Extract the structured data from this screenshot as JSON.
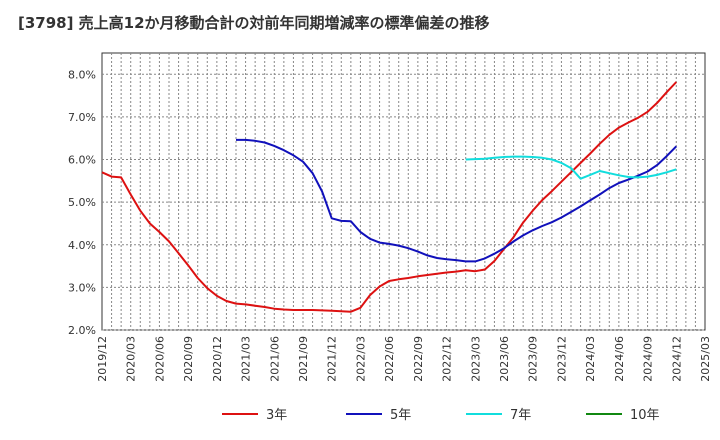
{
  "chart_data": {
    "type": "line",
    "title": "[3798]  売上高12か月移動合計の対前年同期増減率の標準偏差の推移",
    "xlabel": "",
    "ylabel": "",
    "ylim": [
      2.0,
      8.5
    ],
    "yticks": [
      2.0,
      3.0,
      4.0,
      5.0,
      6.0,
      7.0,
      8.0
    ],
    "ytick_labels": [
      "2.0%",
      "3.0%",
      "4.0%",
      "5.0%",
      "6.0%",
      "7.0%",
      "8.0%"
    ],
    "xtick_labels": [
      "2019/12",
      "2020/03",
      "2020/06",
      "2020/09",
      "2020/12",
      "2021/03",
      "2021/06",
      "2021/09",
      "2021/12",
      "2022/03",
      "2022/06",
      "2022/09",
      "2022/12",
      "2023/03",
      "2023/06",
      "2023/09",
      "2023/12",
      "2024/03",
      "2024/06",
      "2024/09",
      "2024/12",
      "2025/03"
    ],
    "x_unit": "months since 2019/12",
    "x_range": [
      0,
      63
    ],
    "grid": true,
    "legend_position": "bottom",
    "series": [
      {
        "name": "3年",
        "color": "#dd1111",
        "x": [
          0,
          1,
          2,
          3,
          4,
          5,
          6,
          7,
          8,
          9,
          10,
          11,
          12,
          13,
          14,
          15,
          16,
          17,
          18,
          19,
          20,
          21,
          22,
          23,
          24,
          25,
          26,
          27,
          28,
          29,
          30,
          31,
          32,
          33,
          34,
          35,
          36,
          37,
          38,
          39,
          40,
          41,
          42,
          43,
          44,
          45,
          46,
          47,
          48,
          49,
          50,
          51,
          52,
          53,
          54,
          55,
          56,
          57,
          58,
          59,
          60
        ],
        "values": [
          5.7,
          5.6,
          5.58,
          5.18,
          4.8,
          4.5,
          4.3,
          4.08,
          3.8,
          3.52,
          3.22,
          2.98,
          2.8,
          2.68,
          2.62,
          2.6,
          2.57,
          2.54,
          2.5,
          2.48,
          2.47,
          2.47,
          2.47,
          2.46,
          2.45,
          2.44,
          2.43,
          2.52,
          2.82,
          3.02,
          3.15,
          3.19,
          3.22,
          3.26,
          3.29,
          3.32,
          3.35,
          3.37,
          3.4,
          3.38,
          3.42,
          3.62,
          3.9,
          4.18,
          4.52,
          4.8,
          5.05,
          5.26,
          5.48,
          5.7,
          5.92,
          6.14,
          6.37,
          6.58,
          6.75,
          6.87,
          6.98,
          7.12,
          7.33,
          7.58,
          7.82
        ]
      },
      {
        "name": "5年",
        "color": "#1111bb",
        "x": [
          14,
          15,
          16,
          17,
          18,
          19,
          20,
          21,
          22,
          23,
          24,
          25,
          26,
          27,
          28,
          29,
          30,
          31,
          32,
          33,
          34,
          35,
          36,
          37,
          38,
          39,
          40,
          41,
          42,
          43,
          44,
          45,
          46,
          47,
          48,
          49,
          50,
          51,
          52,
          53,
          54,
          55,
          56,
          57,
          58,
          59,
          60
        ],
        "values": [
          6.46,
          6.46,
          6.44,
          6.4,
          6.32,
          6.22,
          6.1,
          5.95,
          5.68,
          5.25,
          4.62,
          4.56,
          4.55,
          4.3,
          4.14,
          4.05,
          4.02,
          3.98,
          3.92,
          3.84,
          3.75,
          3.69,
          3.66,
          3.64,
          3.61,
          3.61,
          3.68,
          3.79,
          3.92,
          4.08,
          4.22,
          4.34,
          4.44,
          4.53,
          4.64,
          4.77,
          4.9,
          5.04,
          5.18,
          5.33,
          5.45,
          5.53,
          5.62,
          5.72,
          5.87,
          6.08,
          6.31
        ]
      },
      {
        "name": "7年",
        "color": "#11dddd",
        "x": [
          38,
          39,
          40,
          41,
          42,
          43,
          44,
          45,
          46,
          47,
          48,
          49,
          50,
          51,
          52,
          53,
          54,
          55,
          56,
          57,
          58,
          59,
          60
        ],
        "values": [
          6.0,
          6.01,
          6.02,
          6.04,
          6.06,
          6.07,
          6.07,
          6.06,
          6.04,
          6.0,
          5.92,
          5.8,
          5.55,
          5.64,
          5.73,
          5.68,
          5.63,
          5.59,
          5.58,
          5.6,
          5.64,
          5.7,
          5.77
        ]
      },
      {
        "name": "10年",
        "color": "#118811",
        "x": [],
        "values": []
      }
    ]
  }
}
